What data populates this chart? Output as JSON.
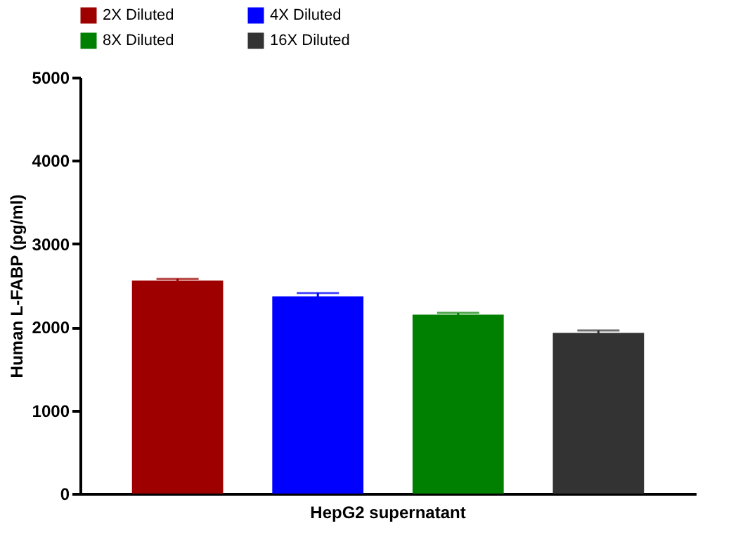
{
  "chart_data": {
    "type": "bar",
    "ylabel": "Human L-FABP (pg/ml)",
    "categories": [
      "HepG2 supernatant"
    ],
    "series": [
      {
        "name": "2X Diluted",
        "color": "#9e0000",
        "values": [
          2560
        ],
        "errors": [
          20
        ]
      },
      {
        "name": "4X Diluted",
        "color": "#0000ff",
        "values": [
          2370
        ],
        "errors": [
          40
        ]
      },
      {
        "name": "8X Diluted",
        "color": "#008000",
        "values": [
          2150
        ],
        "errors": [
          20
        ]
      },
      {
        "name": "16X Diluted",
        "color": "#333333",
        "values": [
          1930
        ],
        "errors": [
          30
        ]
      }
    ],
    "ylim": [
      0,
      5000
    ],
    "yticks": [
      0,
      1000,
      2000,
      3000,
      4000,
      5000
    ],
    "grid": false,
    "legend": "top"
  }
}
